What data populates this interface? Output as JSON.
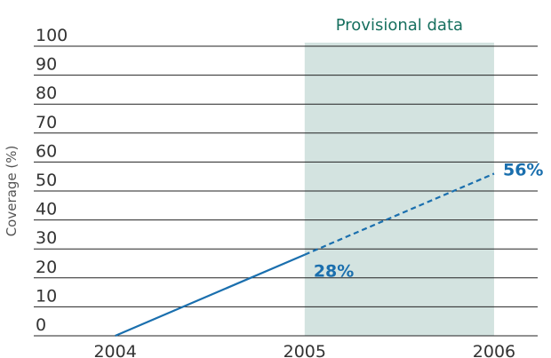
{
  "chart_data": {
    "type": "line",
    "ylabel": "Coverage (%)",
    "x": [
      2004,
      2005,
      2006
    ],
    "series": [
      {
        "name": "Coverage",
        "color": "#1a6fae",
        "values": [
          0,
          28,
          56
        ],
        "value_labels": [
          null,
          "28%",
          "56%"
        ]
      }
    ],
    "xlim": [
      2003.57,
      2006.23
    ],
    "xticks": [
      2004,
      2005,
      2006
    ],
    "ylim": [
      0,
      100
    ],
    "yticks": [
      0,
      10,
      20,
      30,
      40,
      50,
      60,
      70,
      80,
      90,
      100
    ],
    "grid": true,
    "shaded_span": {
      "label": "Provisional data",
      "range": [
        2005,
        2006
      ],
      "color": "#d3e3e0",
      "label_color": "#17705f"
    }
  }
}
